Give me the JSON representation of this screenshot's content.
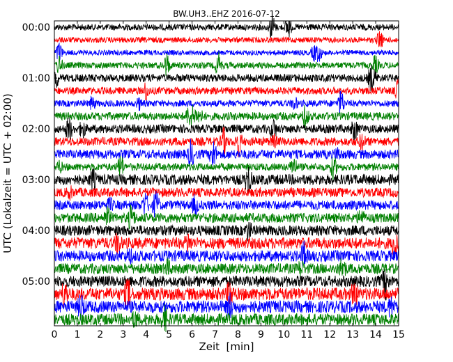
{
  "chart_data": {
    "type": "line",
    "subtype": "dayplot",
    "title": "BW.UH3..EHZ 2016-07-12",
    "xlabel": "Zeit  [min]",
    "ylabel": "UTC (Lokalzeit = UTC + 02:00)",
    "xlim": [
      0,
      15
    ],
    "x_ticks": [
      "0",
      "1",
      "2",
      "3",
      "4",
      "5",
      "6",
      "7",
      "8",
      "9",
      "10",
      "11",
      "12",
      "13",
      "14",
      "15"
    ],
    "y_tick_labels": [
      "00:00",
      "01:00",
      "02:00",
      "03:00",
      "04:00",
      "05:00"
    ],
    "trace_count": 24,
    "traces_per_hour": 4,
    "minutes_per_trace": 15,
    "trace_colors": [
      "#000000",
      "#ff0000",
      "#0000ff",
      "#008000"
    ],
    "grid": false,
    "legend": "none"
  }
}
